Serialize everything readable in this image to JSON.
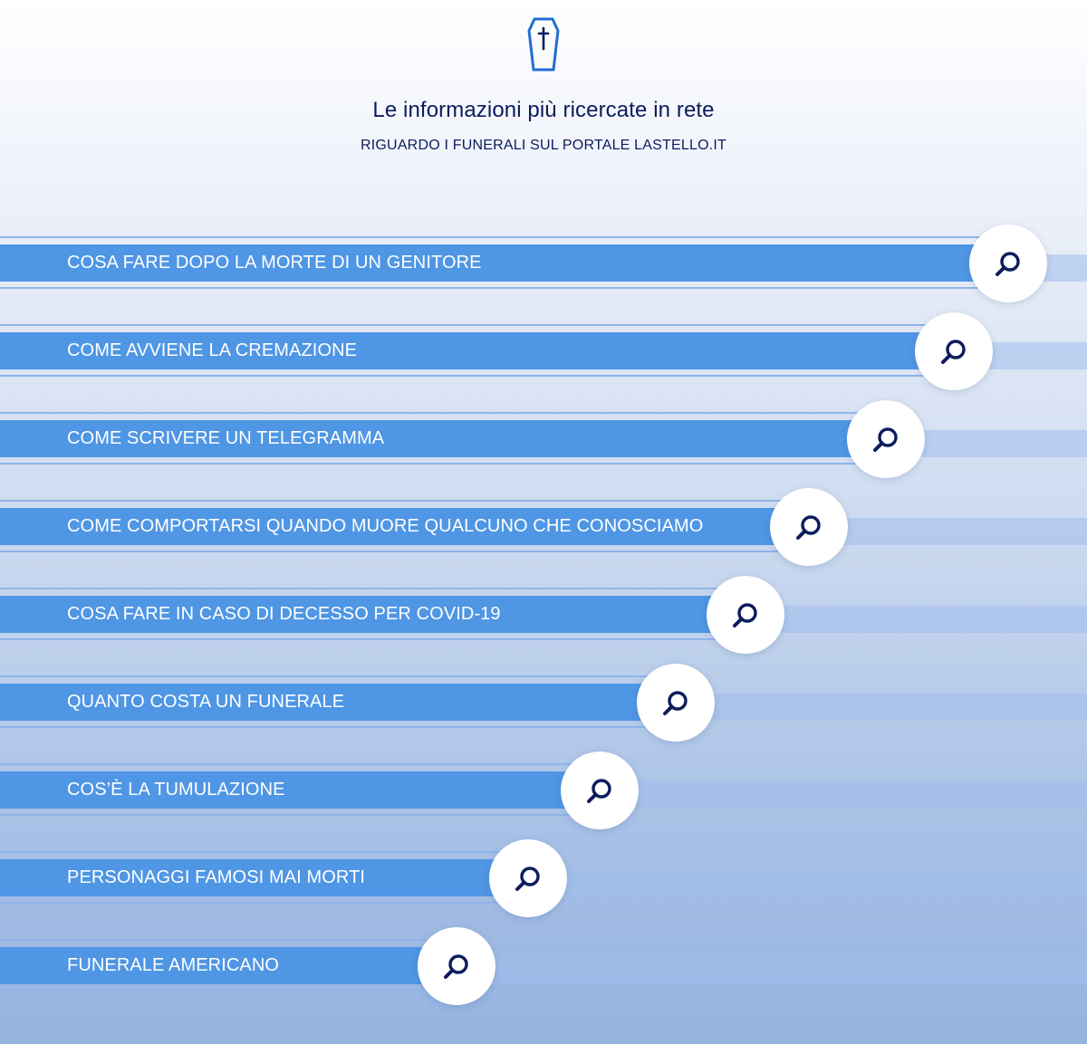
{
  "header": {
    "icon": "coffin-icon",
    "title": "Le informazioni più ricercate in rete",
    "subtitle": "RIGUARDO I FUNERALI SUL PORTALE LASTELLO.IT"
  },
  "colors": {
    "title_text": "#0c1c5c",
    "bar": "#4f96e4",
    "line": "#90b4ea",
    "icon": "#0c1c5c",
    "coffin": "#1f6fd1"
  },
  "items": [
    {
      "label": "COSA FARE DOPO LA MORTE DI UN GENITORE",
      "icon": "search-icon"
    },
    {
      "label": "COME AVVIENE LA CREMAZIONE",
      "icon": "search-icon"
    },
    {
      "label": "COME SCRIVERE UN TELEGRAMMA",
      "icon": "search-icon"
    },
    {
      "label": "COME COMPORTARSI QUANDO MUORE QUALCUNO CHE CONOSCIAMO",
      "icon": "search-icon"
    },
    {
      "label": "COSA FARE IN CASO DI DECESSO PER COVID-19",
      "icon": "search-icon"
    },
    {
      "label": "QUANTO COSTA UN FUNERALE",
      "icon": "search-icon"
    },
    {
      "label": "COS’È LA TUMULAZIONE",
      "icon": "search-icon"
    },
    {
      "label": "PERSONAGGI FAMOSI MAI MORTI",
      "icon": "search-icon"
    },
    {
      "label": "FUNERALE AMERICANO",
      "icon": "search-icon"
    }
  ]
}
